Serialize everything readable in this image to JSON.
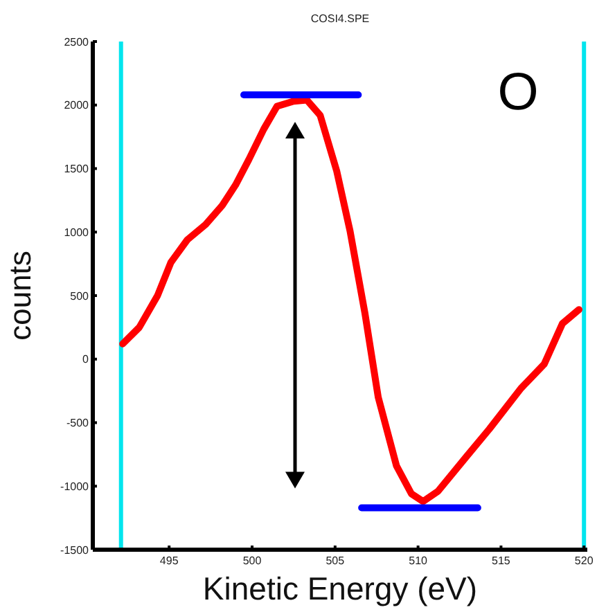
{
  "chart_data": {
    "type": "line",
    "title": "COSI4.SPE",
    "xlabel": "Kinetic Energy (eV)",
    "ylabel": "counts",
    "annotations": [
      "O"
    ],
    "xlim": [
      490.4,
      520.2
    ],
    "xticks": [
      495,
      500,
      505,
      510,
      515,
      520
    ],
    "ylim": [
      -1500,
      2500
    ],
    "yticks": [
      -1500,
      -1000,
      -500,
      0,
      500,
      1000,
      1500,
      2000,
      2500
    ],
    "marker": "none",
    "line_style": "solid",
    "series": [
      {
        "color": "#ff0000",
        "x": [
          492.2,
          493.2,
          494.3,
          495.1,
          496.1,
          497.2,
          498.2,
          499.0,
          499.8,
          500.7,
          501.5,
          502.5,
          503.3,
          504.1,
          505.1,
          505.9,
          506.8,
          507.6,
          508.7,
          509.6,
          510.3,
          511.2,
          512.9,
          514.3,
          516.2,
          517.6,
          518.7,
          519.7
        ],
        "values": [
          120,
          250,
          500,
          760,
          940,
          1060,
          1210,
          1370,
          1570,
          1810,
          1990,
          2030,
          2040,
          1920,
          1480,
          1010,
          360,
          -300,
          -840,
          -1060,
          -1120,
          -1040,
          -770,
          -550,
          -230,
          -40,
          280,
          390
        ]
      },
      {
        "color": "#0000ff",
        "x": [
          499.5,
          506.4
        ],
        "values": [
          2080,
          2080
        ]
      },
      {
        "color": "#0000ff",
        "x": [
          506.6,
          513.6
        ],
        "values": [
          -1170,
          -1170
        ]
      }
    ],
    "ref_lines": [
      {
        "axis": "x",
        "value": 492.1,
        "color": "#00e5ee"
      },
      {
        "axis": "x",
        "value": 520,
        "color": "#00e5ee"
      }
    ]
  }
}
